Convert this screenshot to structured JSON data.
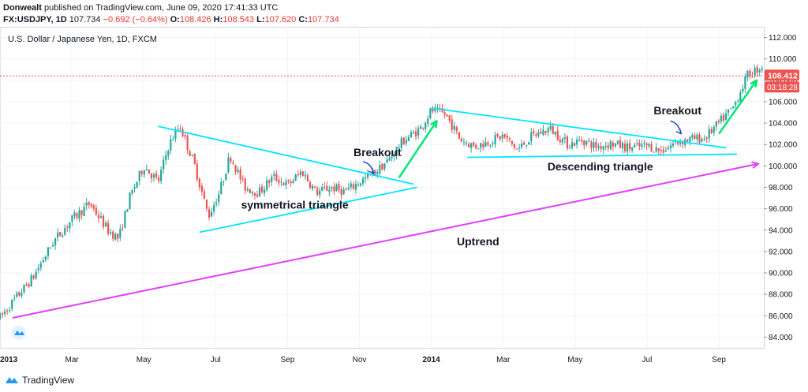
{
  "header": {
    "publisher": "Donwealt",
    "published_text": "published on TradingView.com, June 09, 2020 17:41:33 UTC",
    "symbol": "FX:USDJPY, 1D",
    "last": "107.734",
    "change": "−0.692 (−0.64%)",
    "o_label": "O:",
    "o_val": "108.426",
    "h_label": "H:",
    "h_val": "108.543",
    "l_label": "L:",
    "l_val": "107.620",
    "c_label": "C:",
    "c_val": "107.734"
  },
  "footer": {
    "brand": "TradingView"
  },
  "colors": {
    "up": "#26a69a",
    "down": "#ef5350",
    "trendline": "#e040fb",
    "pattern": "#00e5ff",
    "arrow_up": "#00e676",
    "arrow_breakout": "#1a3cd8",
    "price_line": "#ef5350"
  },
  "chart_data": {
    "type": "candlestick",
    "title": "U.S. Dollar / Japanese Yen, 1D, FXCM",
    "ylim": [
      83,
      113
    ],
    "y_ticks": [
      "84.000",
      "86.000",
      "88.000",
      "90.000",
      "92.000",
      "94.000",
      "96.000",
      "98.000",
      "100.000",
      "102.000",
      "104.000",
      "106.000",
      "108.000",
      "110.000",
      "112.000"
    ],
    "x_ticks": [
      "2013",
      "Mar",
      "May",
      "Jul",
      "Sep",
      "Nov",
      "2014",
      "Mar",
      "May",
      "Jul",
      "Sep"
    ],
    "x_range": [
      0,
      21.25
    ],
    "price_anchors": [
      [
        0.0,
        85.8
      ],
      [
        0.4,
        87.5
      ],
      [
        0.9,
        89.5
      ],
      [
        1.5,
        93.0
      ],
      [
        2.0,
        95.0
      ],
      [
        2.5,
        96.5
      ],
      [
        3.0,
        94.0
      ],
      [
        3.3,
        93.2
      ],
      [
        3.6,
        97.0
      ],
      [
        4.0,
        100.0
      ],
      [
        4.4,
        98.5
      ],
      [
        4.7,
        102.0
      ],
      [
        5.0,
        103.8
      ],
      [
        5.4,
        100.2
      ],
      [
        5.8,
        95.3
      ],
      [
        6.1,
        97.5
      ],
      [
        6.4,
        101.0
      ],
      [
        6.8,
        98.0
      ],
      [
        7.2,
        97.5
      ],
      [
        7.6,
        99.0
      ],
      [
        8.0,
        98.2
      ],
      [
        8.4,
        99.5
      ],
      [
        8.8,
        97.5
      ],
      [
        9.2,
        98.0
      ],
      [
        9.6,
        97.6
      ],
      [
        10.0,
        98.5
      ],
      [
        10.4,
        99.3
      ],
      [
        10.8,
        100.5
      ],
      [
        11.2,
        102.3
      ],
      [
        11.7,
        103.5
      ],
      [
        12.0,
        105.2
      ],
      [
        12.4,
        104.8
      ],
      [
        12.8,
        102.5
      ],
      [
        13.2,
        101.8
      ],
      [
        13.6,
        102.3
      ],
      [
        14.0,
        102.8
      ],
      [
        14.4,
        101.5
      ],
      [
        14.8,
        102.8
      ],
      [
        15.3,
        103.5
      ],
      [
        15.8,
        102.0
      ],
      [
        16.2,
        102.4
      ],
      [
        16.6,
        101.8
      ],
      [
        17.0,
        102.1
      ],
      [
        17.5,
        101.7
      ],
      [
        18.0,
        101.9
      ],
      [
        18.4,
        101.4
      ],
      [
        18.8,
        102.2
      ],
      [
        19.2,
        102.5
      ],
      [
        19.6,
        102.6
      ],
      [
        20.0,
        104.0
      ],
      [
        20.4,
        105.5
      ],
      [
        20.8,
        108.5
      ],
      [
        21.2,
        109.3
      ]
    ],
    "current_price": "108.412",
    "countdown": "03:18:28",
    "current_value": 108.412,
    "annotations": [
      {
        "text": "Breakout",
        "x": 10.5,
        "y": 100.9
      },
      {
        "text": "symmetrical triangle",
        "x": 8.2,
        "y": 96.0
      },
      {
        "text": "Breakout",
        "x": 18.85,
        "y": 104.8
      },
      {
        "text": "Descending triangle",
        "x": 16.7,
        "y": 99.6
      },
      {
        "text": "Uptrend",
        "x": 13.3,
        "y": 92.6
      }
    ],
    "lines": [
      {
        "name": "uptrend-line",
        "color": "trendline",
        "from": [
          0.35,
          85.8
        ],
        "to": [
          21.1,
          100.2
        ],
        "arrow": true
      },
      {
        "name": "sym-triangle-upper",
        "color": "pattern",
        "from": [
          4.4,
          103.7
        ],
        "to": [
          11.5,
          98.3
        ]
      },
      {
        "name": "sym-triangle-lower",
        "color": "pattern",
        "from": [
          5.55,
          93.8
        ],
        "to": [
          11.6,
          98.0
        ]
      },
      {
        "name": "desc-triangle-upper",
        "color": "pattern",
        "from": [
          12.0,
          105.4
        ],
        "to": [
          20.2,
          101.7
        ]
      },
      {
        "name": "desc-triangle-lower",
        "color": "pattern",
        "from": [
          13.0,
          100.8
        ],
        "to": [
          20.5,
          101.1
        ]
      },
      {
        "name": "green-arrow-1",
        "color": "arrow_up",
        "from": [
          11.1,
          98.9
        ],
        "to": [
          12.15,
          104.2
        ],
        "arrow": true
      },
      {
        "name": "green-arrow-2",
        "color": "arrow_up",
        "from": [
          20.0,
          103.0
        ],
        "to": [
          21.05,
          108.0
        ],
        "arrow": true
      },
      {
        "name": "breakout-arrow-1",
        "color": "arrow_breakout",
        "from": [
          10.1,
          100.4
        ],
        "to": [
          10.4,
          99.3
        ],
        "arrow": true,
        "curve": true
      },
      {
        "name": "breakout-arrow-2",
        "color": "arrow_breakout",
        "from": [
          18.65,
          104.2
        ],
        "to": [
          18.95,
          103.0
        ],
        "arrow": true,
        "curve": true
      }
    ]
  }
}
